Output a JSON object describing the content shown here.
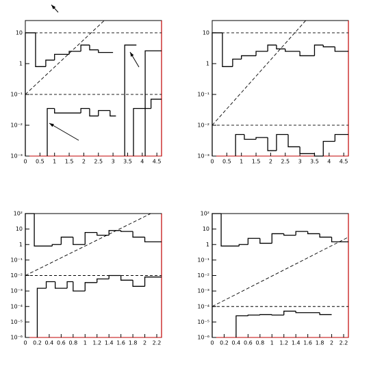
{
  "chart_data": [
    {
      "type": "histogram",
      "log_y": true,
      "xlim": [
        0,
        4.66
      ],
      "ylim": [
        0.001,
        25
      ],
      "xticks": [
        0,
        0.5,
        1,
        1.5,
        2,
        2.5,
        3,
        3.5,
        4,
        4.5
      ],
      "yticks": [
        {
          "value": 0.001,
          "label": "10⁻³"
        },
        {
          "value": 0.01,
          "label": "10⁻²"
        },
        {
          "value": 0.1,
          "label": "10⁻¹"
        },
        1,
        10
      ],
      "hlines": [
        10,
        0.1
      ],
      "diagonal": {
        "x": [
          0,
          2.7
        ],
        "y": [
          0.1,
          25
        ]
      },
      "arrows": true,
      "series": [
        {
          "color": "#000000",
          "bins": [
            0,
            0.35,
            0.7,
            1.0,
            1.5,
            1.9,
            2.2,
            2.5,
            3.0,
            3.4,
            3.8,
            4.1,
            4.66
          ],
          "values": [
            10,
            0.8,
            1.3,
            2,
            2.5,
            4,
            2.8,
            2.3,
            null,
            4,
            null,
            2.6
          ]
        },
        {
          "color": "#000000",
          "bins": [
            0.35,
            0.75,
            1.0,
            1.9,
            2.2,
            2.5,
            2.9,
            3.1,
            3.7,
            4.3,
            4.66
          ],
          "values": [
            null,
            0.035,
            0.025,
            0.035,
            0.02,
            0.03,
            0.02,
            null,
            0.035,
            0.07
          ]
        }
      ]
    },
    {
      "type": "histogram",
      "log_y": true,
      "xlim": [
        0,
        4.66
      ],
      "ylim": [
        0.001,
        25
      ],
      "xticks": [
        0,
        0.5,
        1,
        1.5,
        2,
        2.5,
        3,
        3.5,
        4,
        4.5
      ],
      "yticks": [
        {
          "value": 0.001,
          "label": "10⁻³"
        },
        {
          "value": 0.01,
          "label": "10⁻²"
        },
        {
          "value": 0.1,
          "label": "10⁻¹"
        },
        1,
        10
      ],
      "hlines": [
        10,
        0.01
      ],
      "diagonal": {
        "x": [
          0,
          3.2
        ],
        "y": [
          0.01,
          25
        ]
      },
      "series": [
        {
          "color": "#000000",
          "bins": [
            0,
            0.35,
            0.7,
            1.0,
            1.5,
            1.9,
            2.2,
            2.5,
            3.0,
            3.5,
            3.8,
            4.2,
            4.66
          ],
          "values": [
            10,
            0.8,
            1.4,
            1.8,
            2.5,
            4,
            3,
            2.5,
            1.8,
            4,
            3.5,
            2.5
          ]
        },
        {
          "color": "#000000",
          "bins": [
            0.8,
            1.1,
            1.5,
            1.9,
            2.2,
            2.6,
            3.0,
            3.5,
            3.8,
            4.2,
            4.66
          ],
          "values": [
            0.005,
            0.0035,
            0.004,
            0.0015,
            0.005,
            0.002,
            0.0012,
            0.001,
            0.003,
            0.005
          ]
        }
      ]
    },
    {
      "type": "histogram",
      "log_y": true,
      "xlim": [
        0,
        2.28
      ],
      "ylim": [
        1e-06,
        100
      ],
      "xticks": [
        0,
        0.2,
        0.4,
        0.6,
        0.8,
        1,
        1.2,
        1.4,
        1.6,
        1.8,
        2,
        2.2
      ],
      "yticks": [
        {
          "value": 1e-06,
          "label": "10⁻⁶"
        },
        {
          "value": 1e-05,
          "label": "10⁻⁵"
        },
        {
          "value": 0.0001,
          "label": "10⁻⁴"
        },
        {
          "value": 0.001,
          "label": "10⁻³"
        },
        {
          "value": 0.01,
          "label": "10⁻²"
        },
        {
          "value": 0.1,
          "label": "10⁻¹"
        },
        1,
        10,
        {
          "value": 100,
          "label": "10²"
        }
      ],
      "hlines": [
        100,
        0.01
      ],
      "diagonal": {
        "x": [
          0,
          2.1
        ],
        "y": [
          0.01,
          100
        ]
      },
      "series": [
        {
          "color": "#000000",
          "bins": [
            0,
            0.15,
            0.45,
            0.6,
            0.8,
            1.0,
            1.2,
            1.4,
            1.6,
            1.8,
            2.0,
            2.28
          ],
          "values": [
            100,
            0.8,
            1,
            3,
            1,
            6,
            4,
            8,
            7,
            3,
            1.5
          ]
        },
        {
          "color": "#000000",
          "bins": [
            0.15,
            0.2,
            0.35,
            0.5,
            0.7,
            0.8,
            1.0,
            1.2,
            1.4,
            1.6,
            1.8,
            2.0,
            2.28
          ],
          "values": [
            null,
            0.0015,
            0.004,
            0.0015,
            0.004,
            0.001,
            0.0035,
            0.006,
            0.01,
            0.005,
            0.002,
            0.008
          ]
        }
      ]
    },
    {
      "type": "histogram",
      "log_y": true,
      "xlim": [
        0,
        2.28
      ],
      "ylim": [
        1e-06,
        100
      ],
      "xticks": [
        0,
        0.2,
        0.4,
        0.6,
        0.8,
        1,
        1.2,
        1.4,
        1.6,
        1.8,
        2,
        2.2
      ],
      "yticks": [
        {
          "value": 1e-06,
          "label": "10⁻⁶"
        },
        {
          "value": 1e-05,
          "label": "10⁻⁵"
        },
        {
          "value": 0.0001,
          "label": "10⁻⁴"
        },
        {
          "value": 0.001,
          "label": "10⁻³"
        },
        {
          "value": 0.01,
          "label": "10⁻²"
        },
        {
          "value": 0.1,
          "label": "10⁻¹"
        },
        1,
        10,
        {
          "value": 100,
          "label": "10²"
        }
      ],
      "hlines": [
        100,
        0.0001
      ],
      "diagonal": {
        "x": [
          0,
          2.28
        ],
        "y": [
          0.0001,
          3
        ]
      },
      "series": [
        {
          "color": "#000000",
          "bins": [
            0,
            0.15,
            0.45,
            0.6,
            0.8,
            1.0,
            1.2,
            1.4,
            1.6,
            1.8,
            2.0,
            2.28
          ],
          "values": [
            100,
            0.8,
            1,
            2.5,
            1.2,
            5,
            4,
            7,
            5,
            3,
            1.5
          ]
        },
        {
          "color": "#000000",
          "bins": [
            0.4,
            0.6,
            0.8,
            1.0,
            1.2,
            1.4,
            1.8,
            2.0
          ],
          "values": [
            2.5e-05,
            2.8e-05,
            3e-05,
            2.8e-05,
            5e-05,
            4e-05,
            3e-05
          ]
        }
      ]
    }
  ]
}
